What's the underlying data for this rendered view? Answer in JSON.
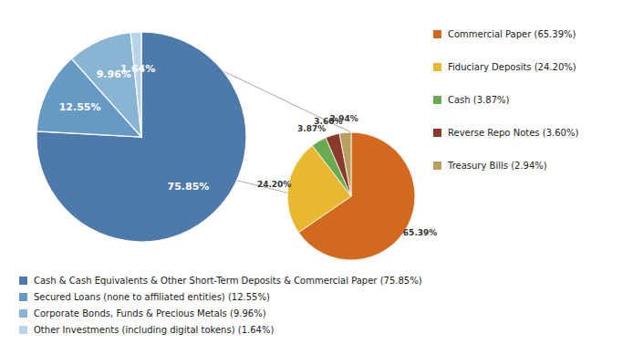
{
  "chart_data": [
    {
      "type": "pie",
      "categories": [
        "Cash & Cash Equivalents & Other Short-Term Deposits & Commercial Paper (75.85%)",
        "Secured Loans (none to affiliated entities) (12.55%)",
        "Corporate Bonds, Funds & Precious Metals (9.96%)",
        "Other Investments (including digital tokens) (1.64%)"
      ],
      "values": [
        75.85,
        12.55,
        9.96,
        1.64
      ],
      "value_labels": [
        "75.85%",
        "12.55%",
        "9.96%",
        "1.64%"
      ],
      "colors": [
        "#4e7aab",
        "#6699c4",
        "#8ab4d4",
        "#b8d4e8"
      ],
      "data_labels": true,
      "legend": "bottom"
    },
    {
      "type": "pie",
      "categories": [
        "Commercial Paper (65.39%)",
        "Fiduciary Deposits (24.20%)",
        "Cash (3.87%)",
        "Reverse Repo Notes (3.60%)",
        "Treasury Bills (2.94%)"
      ],
      "values": [
        65.39,
        24.2,
        3.87,
        3.6,
        2.94
      ],
      "value_labels": [
        "65.39%",
        "24.20%",
        "3.87%",
        "3.60%",
        "2.94%"
      ],
      "colors": [
        "#d2691e",
        "#e8b830",
        "#6aaa50",
        "#8b3a2a",
        "#b8a060"
      ],
      "data_labels": true,
      "legend": "right"
    }
  ]
}
